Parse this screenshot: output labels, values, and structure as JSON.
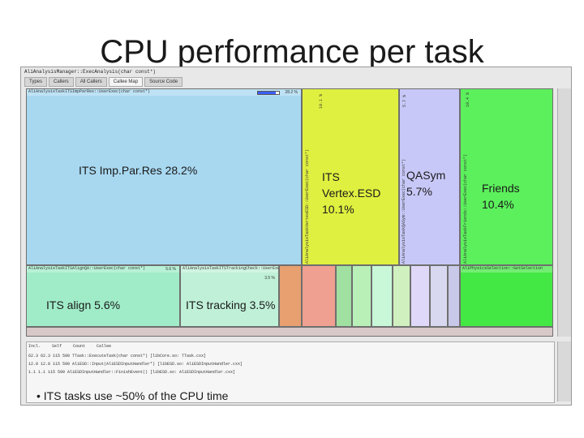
{
  "slide": {
    "title": "CPU performance per task",
    "bullet": "ITS tasks use ~50% of the CPU time"
  },
  "window": {
    "title": "AliAnalysisManager::ExecAnalysis(char const*)",
    "tabs": [
      "Types",
      "Callers",
      "All Callers",
      "Callee Map",
      "Source Code"
    ],
    "active_tab": "Callee Map"
  },
  "blocks": {
    "imp_par_res": {
      "header": "AliAnalysisTaskITSImpParRes::UserExec(char const*)",
      "pct": "28.2 %",
      "label": "ITS Imp.Par.Res 28.2%",
      "color": "#a8d8f0"
    },
    "vertex": {
      "vlabel": "AliAnalysisTaskVertexESD::UserExec(char const*)",
      "pct": "10.1 %",
      "label": "ITS\nVertex.ESD\n10.1%",
      "color": "#e0f040"
    },
    "qasym": {
      "vlabel": "AliAnalysisTaskQASym::UserExec(char const*)",
      "pct": "5.7 %",
      "label": "QASym\n5.7%",
      "color": "#c8c8f8"
    },
    "friends": {
      "vlabel": "AliAnalysisTaskFriends::UserExec(char const*)",
      "pct": "10.4 %",
      "label": "Friends\n10.4%",
      "color": "#5cf05c"
    },
    "align": {
      "header": "AliAnalysisTaskITSAlignQA::UserExec(char const*)",
      "pct": "5.6 %",
      "label": "ITS align 5.6%",
      "color": "#a0ecc8"
    },
    "tracking": {
      "header": "AliAnalysisTaskITSTrackingCheck::UserExec(char const*)",
      "pct": "3.5 %",
      "label": "ITS tracking 3.5%",
      "color": "#c0f0d8"
    },
    "phys_sel": {
      "header": "AliPhysicsSelection::GetSelection",
      "color": "#44e844"
    }
  },
  "bottom_rows": [
    {
      "pct": "62.3",
      "incl": "62.3",
      "count": "115 590",
      "callee": "TTask::ExecuteTask(char const*)",
      "file": "libCore.so: TTask.cxx"
    },
    {
      "pct": "12.8",
      "incl": "12.8",
      "count": "115 590",
      "callee": "AliESD::Input(AliESDInputHandler*)",
      "file": "libESD.so: AliESDInputHandler.cxx"
    },
    {
      "pct": "1.1",
      "incl": "1.1",
      "count": "115 590",
      "callee": "AliESDInputHandler::FinishEvent()",
      "file": "libESD.so: AliESDInputHandler.cxx"
    }
  ],
  "bottom_headers": [
    "Incl.",
    "Self",
    "Count",
    "Callee"
  ]
}
